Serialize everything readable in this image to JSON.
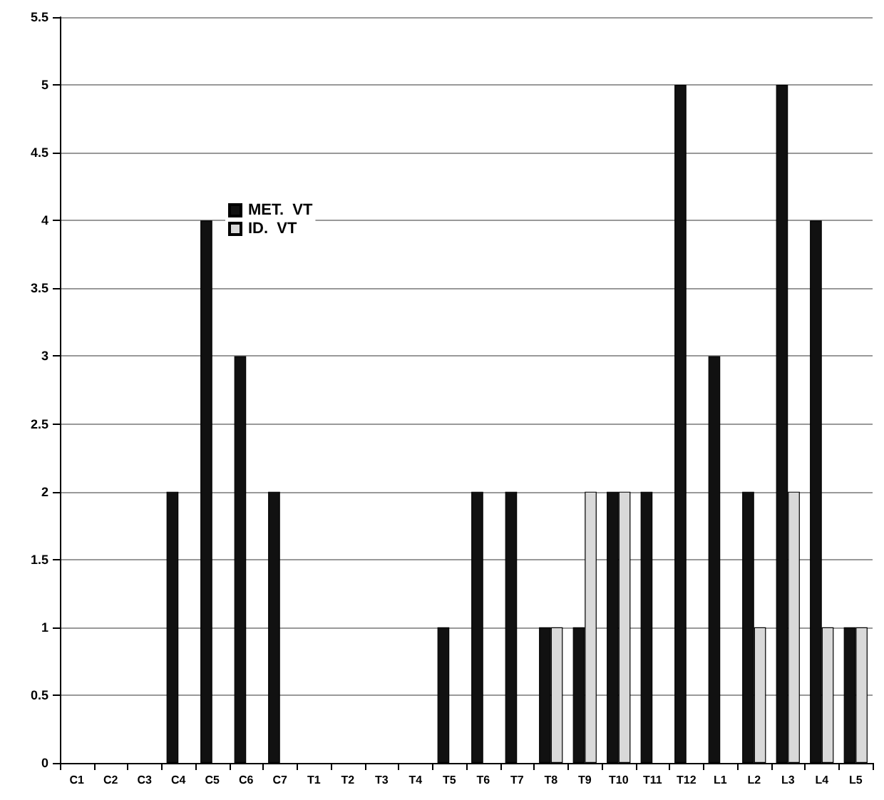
{
  "chart_data": {
    "type": "bar",
    "categories": [
      "C1",
      "C2",
      "C3",
      "C4",
      "C5",
      "C6",
      "C7",
      "T1",
      "T2",
      "T3",
      "T4",
      "T5",
      "T6",
      "T7",
      "T8",
      "T9",
      "T10",
      "T11",
      "T12",
      "L1",
      "L2",
      "L3",
      "L4",
      "L5"
    ],
    "series": [
      {
        "name": "MET.  VT",
        "color": "#111111",
        "values": [
          0,
          0,
          0,
          2,
          4,
          3,
          2,
          0,
          0,
          0,
          0,
          1,
          2,
          2,
          1,
          1,
          2,
          2,
          5,
          3,
          2,
          5,
          4,
          1
        ]
      },
      {
        "name": "ID.  VT",
        "color": "#d9d9d9",
        "values": [
          0,
          0,
          0,
          0,
          0,
          0,
          0,
          0,
          0,
          0,
          0,
          0,
          0,
          0,
          1,
          2,
          2,
          0,
          0,
          0,
          1,
          2,
          1,
          1
        ]
      }
    ],
    "ylim": [
      0,
      5.5
    ],
    "yticks": [
      0,
      0.5,
      1,
      1.5,
      2,
      2.5,
      3,
      3.5,
      4,
      4.5,
      5,
      5.5
    ],
    "grid": "y",
    "legend": "top left"
  }
}
